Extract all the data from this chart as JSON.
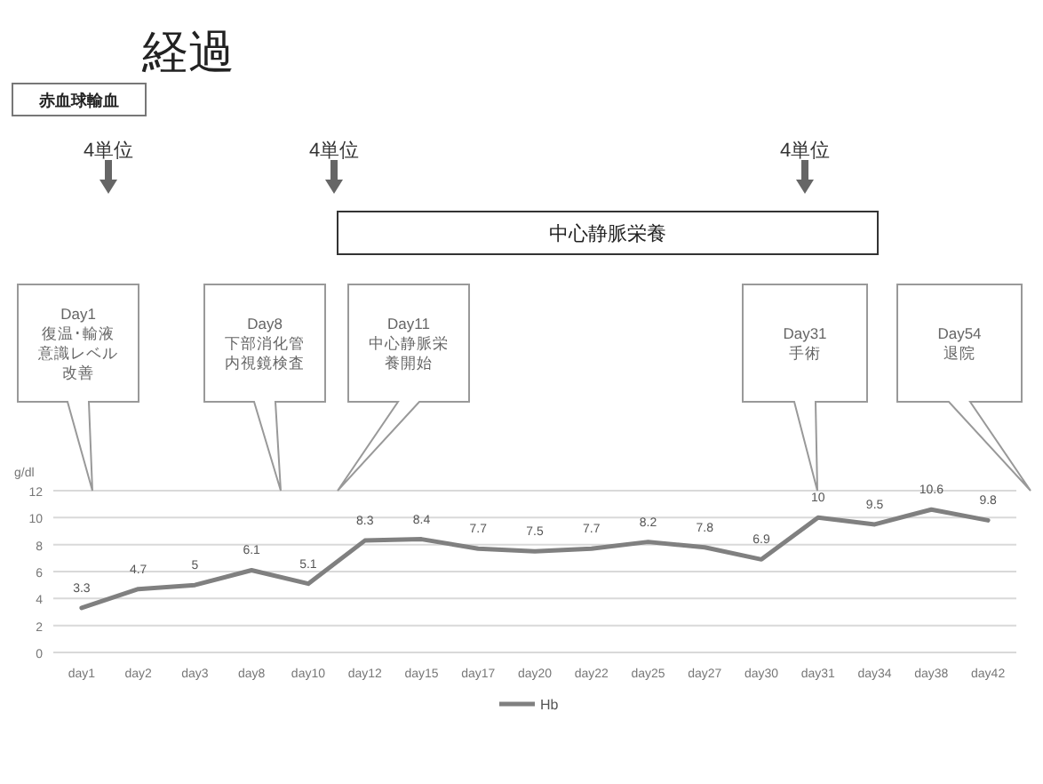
{
  "chart_data": {
    "type": "line",
    "title": "経過",
    "ylabel": "g/dl",
    "categories": [
      "day1",
      "day2",
      "day3",
      "day8",
      "day10",
      "day12",
      "day15",
      "day17",
      "day20",
      "day22",
      "day25",
      "day27",
      "day30",
      "day31",
      "day34",
      "day38",
      "day42"
    ],
    "series": [
      {
        "name": "Hb",
        "color": "#808080",
        "values": [
          3.3,
          4.7,
          5,
          6.1,
          5.1,
          8.3,
          8.4,
          7.7,
          7.5,
          7.7,
          8.2,
          7.8,
          6.9,
          10,
          9.5,
          10.6,
          9.8
        ]
      }
    ],
    "ylim": [
      0,
      12
    ],
    "yticks": [
      0,
      2,
      4,
      6,
      8,
      10,
      12
    ],
    "grid": "y",
    "legend": "bottom",
    "data_labels": true,
    "marker": "none",
    "line_style": "solid",
    "annotations": [
      "赤血球輸血",
      "4単位",
      "4単位",
      "4単位",
      "中心静脈栄養",
      "Day1\n復温･輸液意識レベル改善",
      "Day8\n下部消化管内視鏡検査",
      "Day11\n中心静脈栄養開始",
      "Day31\n手術",
      "Day54\n退院"
    ]
  }
}
